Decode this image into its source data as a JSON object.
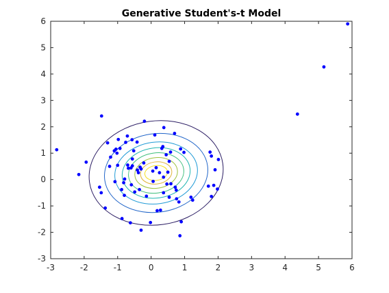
{
  "chart_data": {
    "type": "scatter",
    "title": "Generative Student's-t Model",
    "xlabel": "",
    "ylabel": "",
    "xlim": [
      -3,
      6
    ],
    "ylim": [
      -3,
      6
    ],
    "xticks": [
      -3,
      -2,
      -1,
      0,
      1,
      2,
      3,
      4,
      5,
      6
    ],
    "yticks": [
      -3,
      -2,
      -1,
      0,
      1,
      2,
      3,
      4,
      5,
      6
    ],
    "grid": false,
    "legend": "none",
    "point_color": "#0000ff",
    "points": [
      {
        "x": -2.82,
        "y": 1.13
      },
      {
        "x": -2.16,
        "y": 0.19
      },
      {
        "x": -1.94,
        "y": 0.66
      },
      {
        "x": -1.54,
        "y": -0.29
      },
      {
        "x": -1.49,
        "y": -0.5
      },
      {
        "x": -1.48,
        "y": 2.41
      },
      {
        "x": -1.37,
        "y": -1.08
      },
      {
        "x": -1.3,
        "y": 1.39
      },
      {
        "x": -1.24,
        "y": 0.5
      },
      {
        "x": -1.21,
        "y": 0.85
      },
      {
        "x": -1.1,
        "y": 1.09
      },
      {
        "x": -1.08,
        "y": -0.08
      },
      {
        "x": -1.05,
        "y": 1.15
      },
      {
        "x": -1.02,
        "y": 1.0
      },
      {
        "x": -1.0,
        "y": 0.54
      },
      {
        "x": -0.98,
        "y": 1.52
      },
      {
        "x": -0.93,
        "y": 1.18
      },
      {
        "x": -0.88,
        "y": -0.38
      },
      {
        "x": -0.87,
        "y": -1.48
      },
      {
        "x": -0.82,
        "y": -0.12
      },
      {
        "x": -0.8,
        "y": -0.6
      },
      {
        "x": -0.79,
        "y": 0.02
      },
      {
        "x": -0.76,
        "y": 1.41
      },
      {
        "x": -0.71,
        "y": 1.65
      },
      {
        "x": -0.7,
        "y": 0.55
      },
      {
        "x": -0.68,
        "y": 0.43
      },
      {
        "x": -0.62,
        "y": -1.64
      },
      {
        "x": -0.6,
        "y": 0.44
      },
      {
        "x": -0.59,
        "y": -0.2
      },
      {
        "x": -0.57,
        "y": 1.51
      },
      {
        "x": -0.56,
        "y": 0.78
      },
      {
        "x": -0.56,
        "y": 0.52
      },
      {
        "x": -0.52,
        "y": 1.09
      },
      {
        "x": -0.49,
        "y": -0.47
      },
      {
        "x": -0.42,
        "y": 1.42
      },
      {
        "x": -0.41,
        "y": 0.36
      },
      {
        "x": -0.38,
        "y": 0.26
      },
      {
        "x": -0.35,
        "y": -0.38
      },
      {
        "x": -0.33,
        "y": 0.47
      },
      {
        "x": -0.3,
        "y": -1.92
      },
      {
        "x": -0.3,
        "y": 0.4
      },
      {
        "x": -0.22,
        "y": 0.63
      },
      {
        "x": -0.2,
        "y": 2.21
      },
      {
        "x": -0.14,
        "y": -0.63
      },
      {
        "x": -0.02,
        "y": -1.63
      },
      {
        "x": 0.05,
        "y": 0.32
      },
      {
        "x": 0.06,
        "y": -0.07
      },
      {
        "x": 0.11,
        "y": 1.69
      },
      {
        "x": 0.15,
        "y": 0.45
      },
      {
        "x": 0.18,
        "y": -1.18
      },
      {
        "x": 0.25,
        "y": 0.26
      },
      {
        "x": 0.28,
        "y": -1.16
      },
      {
        "x": 0.32,
        "y": 1.18
      },
      {
        "x": 0.35,
        "y": 1.25
      },
      {
        "x": 0.37,
        "y": 0.09
      },
      {
        "x": 0.37,
        "y": -0.5
      },
      {
        "x": 0.38,
        "y": 1.97
      },
      {
        "x": 0.45,
        "y": 0.94
      },
      {
        "x": 0.47,
        "y": -0.17
      },
      {
        "x": 0.5,
        "y": 0.28
      },
      {
        "x": 0.54,
        "y": 0.69
      },
      {
        "x": 0.54,
        "y": -0.67
      },
      {
        "x": 0.58,
        "y": 1.04
      },
      {
        "x": 0.59,
        "y": -0.16
      },
      {
        "x": 0.7,
        "y": 1.75
      },
      {
        "x": 0.72,
        "y": -0.29
      },
      {
        "x": 0.75,
        "y": -0.4
      },
      {
        "x": 0.76,
        "y": -0.73
      },
      {
        "x": 0.83,
        "y": -0.85
      },
      {
        "x": 0.86,
        "y": -2.13
      },
      {
        "x": 0.88,
        "y": 1.16
      },
      {
        "x": 0.9,
        "y": -1.6
      },
      {
        "x": 0.98,
        "y": 1.03
      },
      {
        "x": 1.19,
        "y": -0.67
      },
      {
        "x": 1.24,
        "y": -0.78
      },
      {
        "x": 1.71,
        "y": -0.25
      },
      {
        "x": 1.76,
        "y": 1.04
      },
      {
        "x": 1.8,
        "y": 0.89
      },
      {
        "x": 1.8,
        "y": -0.64
      },
      {
        "x": 1.87,
        "y": -0.22
      },
      {
        "x": 1.91,
        "y": 0.37
      },
      {
        "x": 1.98,
        "y": -0.36
      },
      {
        "x": 2.01,
        "y": 0.76
      },
      {
        "x": 4.37,
        "y": 2.48
      },
      {
        "x": 5.16,
        "y": 4.27
      },
      {
        "x": 5.87,
        "y": 5.9
      }
    ],
    "contours": {
      "center": [
        0.15,
        0.25
      ],
      "rotation_deg": 8,
      "levels": [
        {
          "rx": 2.01,
          "ry": 1.97,
          "color": "#2a1c63"
        },
        {
          "rx": 1.55,
          "ry": 1.49,
          "color": "#1f64c8"
        },
        {
          "rx": 1.24,
          "ry": 1.17,
          "color": "#1f9ad6"
        },
        {
          "rx": 1.02,
          "ry": 0.95,
          "color": "#20b5b1"
        },
        {
          "rx": 0.83,
          "ry": 0.76,
          "color": "#3cbd7a"
        },
        {
          "rx": 0.64,
          "ry": 0.58,
          "color": "#9cc13b"
        },
        {
          "rx": 0.47,
          "ry": 0.42,
          "color": "#e0b63d"
        },
        {
          "rx": 0.34,
          "ry": 0.28,
          "color": "#f5e024"
        }
      ]
    }
  }
}
